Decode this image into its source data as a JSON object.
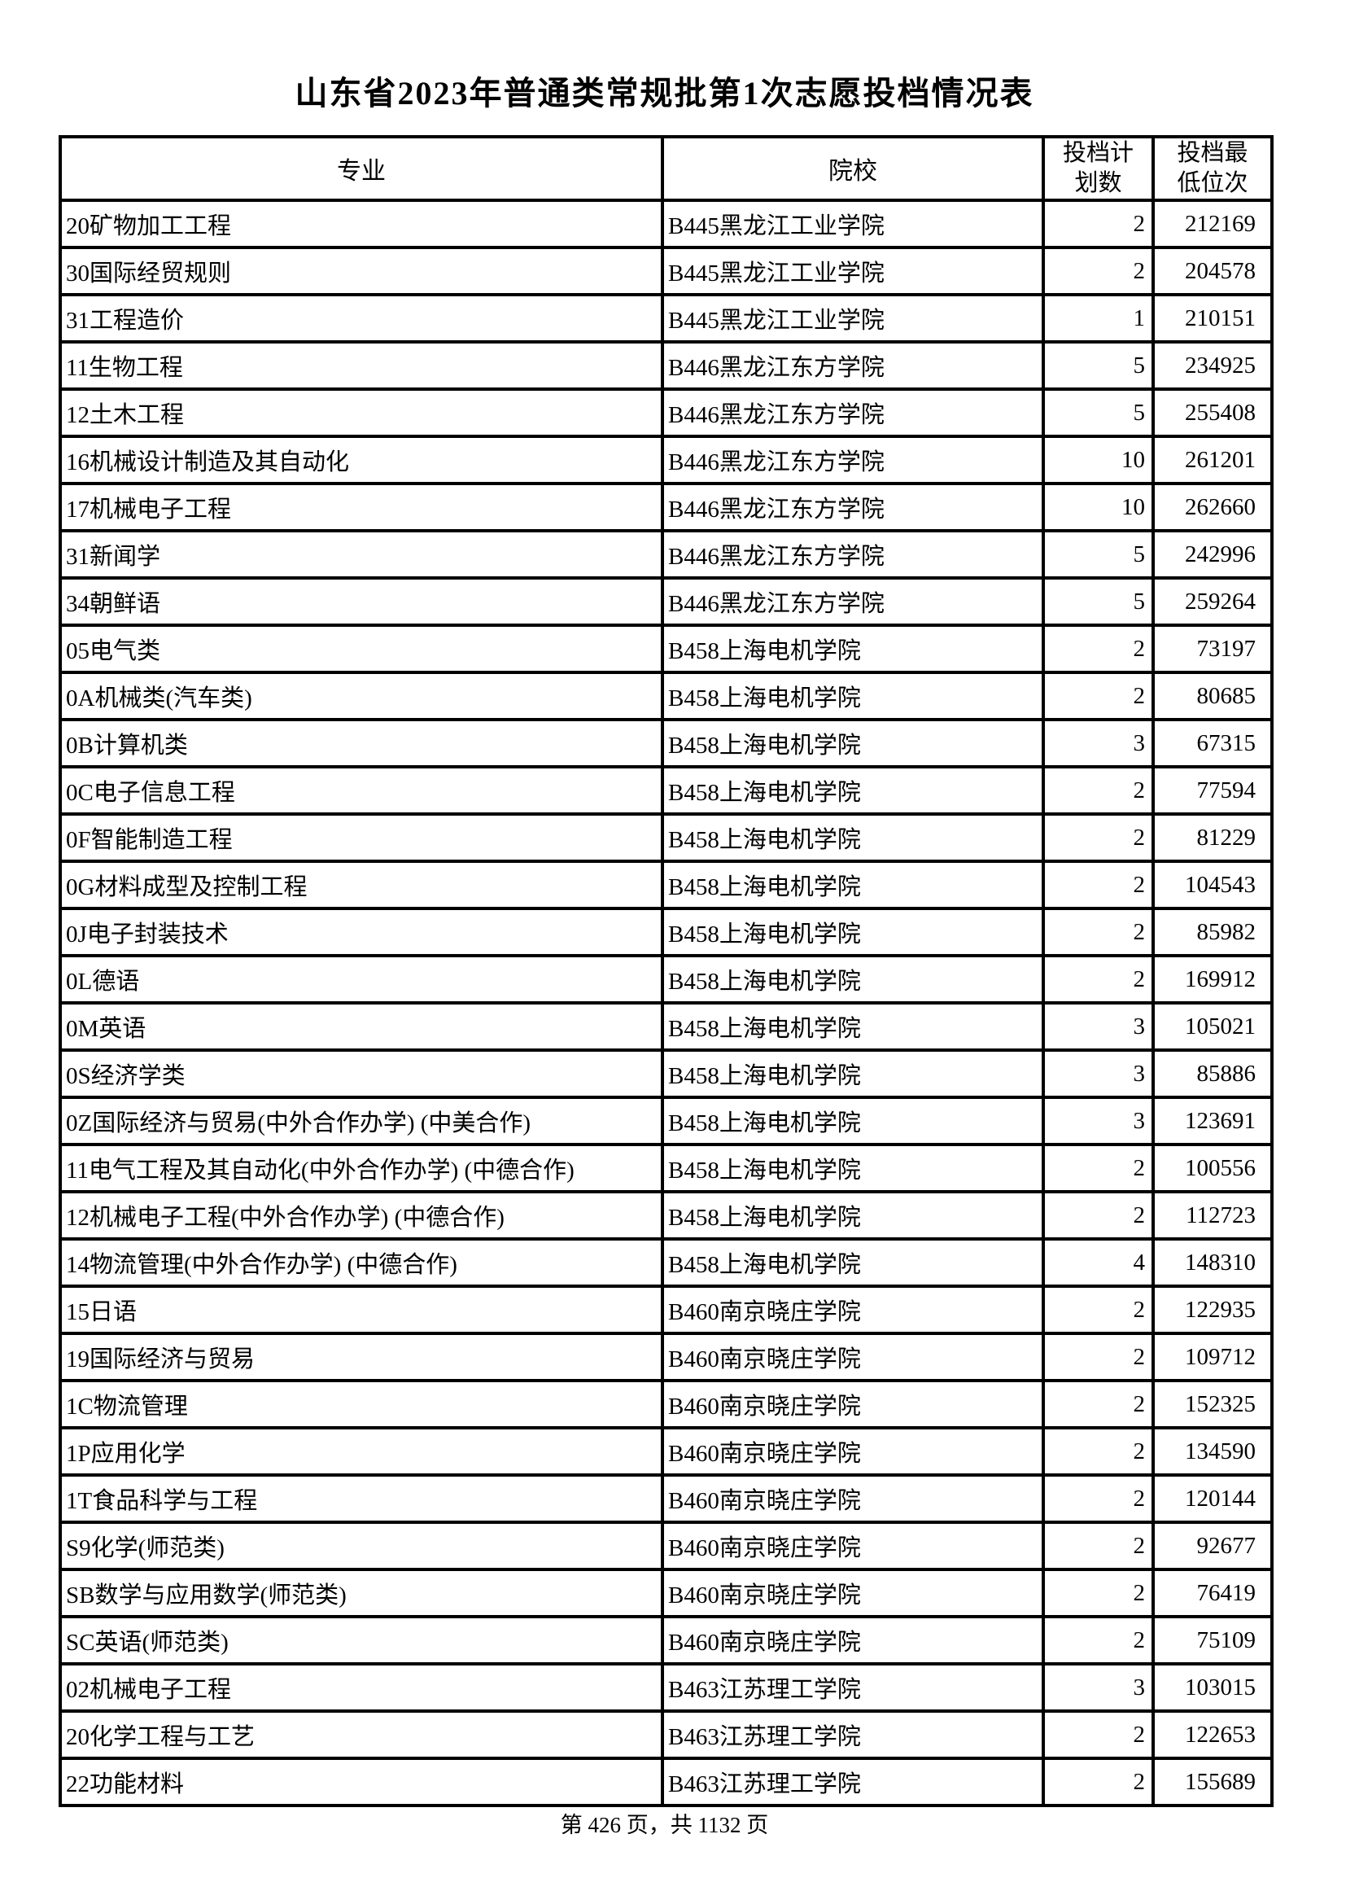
{
  "title": "山东省2023年普通类常规批第1次志愿投档情况表",
  "table": {
    "headers": {
      "major": "专业",
      "college": "院校",
      "plan_count": "投档计划数",
      "min_rank": "投档最低位次"
    },
    "rows": [
      {
        "major": "20矿物加工工程",
        "college": "B445黑龙江工业学院",
        "plan_count": "2",
        "min_rank": "212169"
      },
      {
        "major": "30国际经贸规则",
        "college": "B445黑龙江工业学院",
        "plan_count": "2",
        "min_rank": "204578"
      },
      {
        "major": "31工程造价",
        "college": "B445黑龙江工业学院",
        "plan_count": "1",
        "min_rank": "210151"
      },
      {
        "major": "11生物工程",
        "college": "B446黑龙江东方学院",
        "plan_count": "5",
        "min_rank": "234925"
      },
      {
        "major": "12土木工程",
        "college": "B446黑龙江东方学院",
        "plan_count": "5",
        "min_rank": "255408"
      },
      {
        "major": "16机械设计制造及其自动化",
        "college": "B446黑龙江东方学院",
        "plan_count": "10",
        "min_rank": "261201"
      },
      {
        "major": "17机械电子工程",
        "college": "B446黑龙江东方学院",
        "plan_count": "10",
        "min_rank": "262660"
      },
      {
        "major": "31新闻学",
        "college": "B446黑龙江东方学院",
        "plan_count": "5",
        "min_rank": "242996"
      },
      {
        "major": "34朝鲜语",
        "college": "B446黑龙江东方学院",
        "plan_count": "5",
        "min_rank": "259264"
      },
      {
        "major": "05电气类",
        "college": "B458上海电机学院",
        "plan_count": "2",
        "min_rank": "73197"
      },
      {
        "major": "0A机械类(汽车类)",
        "college": "B458上海电机学院",
        "plan_count": "2",
        "min_rank": "80685"
      },
      {
        "major": "0B计算机类",
        "college": "B458上海电机学院",
        "plan_count": "3",
        "min_rank": "67315"
      },
      {
        "major": "0C电子信息工程",
        "college": "B458上海电机学院",
        "plan_count": "2",
        "min_rank": "77594"
      },
      {
        "major": "0F智能制造工程",
        "college": "B458上海电机学院",
        "plan_count": "2",
        "min_rank": "81229"
      },
      {
        "major": "0G材料成型及控制工程",
        "college": "B458上海电机学院",
        "plan_count": "2",
        "min_rank": "104543"
      },
      {
        "major": "0J电子封装技术",
        "college": "B458上海电机学院",
        "plan_count": "2",
        "min_rank": "85982"
      },
      {
        "major": "0L德语",
        "college": "B458上海电机学院",
        "plan_count": "2",
        "min_rank": "169912"
      },
      {
        "major": "0M英语",
        "college": "B458上海电机学院",
        "plan_count": "3",
        "min_rank": "105021"
      },
      {
        "major": "0S经济学类",
        "college": "B458上海电机学院",
        "plan_count": "3",
        "min_rank": "85886"
      },
      {
        "major": "0Z国际经济与贸易(中外合作办学) (中美合作)",
        "college": "B458上海电机学院",
        "plan_count": "3",
        "min_rank": "123691"
      },
      {
        "major": "11电气工程及其自动化(中外合作办学) (中德合作)",
        "college": "B458上海电机学院",
        "plan_count": "2",
        "min_rank": "100556"
      },
      {
        "major": "12机械电子工程(中外合作办学) (中德合作)",
        "college": "B458上海电机学院",
        "plan_count": "2",
        "min_rank": "112723"
      },
      {
        "major": "14物流管理(中外合作办学) (中德合作)",
        "college": "B458上海电机学院",
        "plan_count": "4",
        "min_rank": "148310"
      },
      {
        "major": "15日语",
        "college": "B460南京晓庄学院",
        "plan_count": "2",
        "min_rank": "122935"
      },
      {
        "major": "19国际经济与贸易",
        "college": "B460南京晓庄学院",
        "plan_count": "2",
        "min_rank": "109712"
      },
      {
        "major": "1C物流管理",
        "college": "B460南京晓庄学院",
        "plan_count": "2",
        "min_rank": "152325"
      },
      {
        "major": "1P应用化学",
        "college": "B460南京晓庄学院",
        "plan_count": "2",
        "min_rank": "134590"
      },
      {
        "major": "1T食品科学与工程",
        "college": "B460南京晓庄学院",
        "plan_count": "2",
        "min_rank": "120144"
      },
      {
        "major": "S9化学(师范类)",
        "college": "B460南京晓庄学院",
        "plan_count": "2",
        "min_rank": "92677"
      },
      {
        "major": "SB数学与应用数学(师范类)",
        "college": "B460南京晓庄学院",
        "plan_count": "2",
        "min_rank": "76419"
      },
      {
        "major": "SC英语(师范类)",
        "college": "B460南京晓庄学院",
        "plan_count": "2",
        "min_rank": "75109"
      },
      {
        "major": "02机械电子工程",
        "college": "B463江苏理工学院",
        "plan_count": "3",
        "min_rank": "103015"
      },
      {
        "major": "20化学工程与工艺",
        "college": "B463江苏理工学院",
        "plan_count": "2",
        "min_rank": "122653"
      },
      {
        "major": "22功能材料",
        "college": "B463江苏理工学院",
        "plan_count": "2",
        "min_rank": "155689"
      }
    ]
  },
  "footer": {
    "page_text": "第 426 页，共 1132 页"
  }
}
